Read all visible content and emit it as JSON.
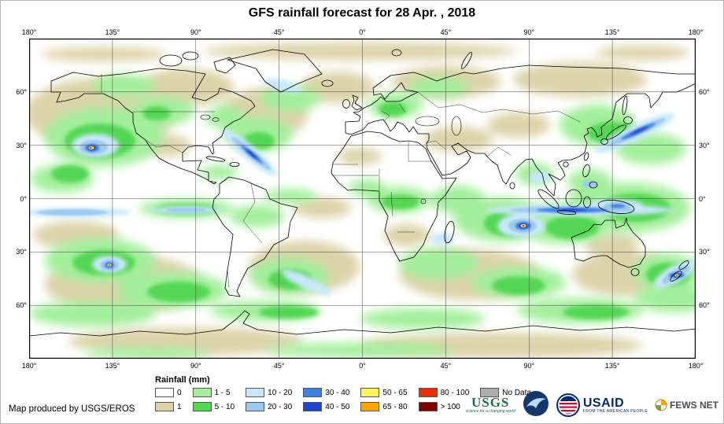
{
  "title": "GFS rainfall forecast for 28 Apr. , 2018",
  "map": {
    "lon_ticks": [
      "180°",
      "135°",
      "90°",
      "45°",
      "0°",
      "45°",
      "90°",
      "135°",
      "180°"
    ],
    "lat_ticks": [
      "60°",
      "30°",
      "0°",
      "30°",
      "60°"
    ]
  },
  "legend": {
    "title": "Rainfall (mm)",
    "items": [
      {
        "label": "0",
        "color": "#FFFFFF"
      },
      {
        "label": "1",
        "color": "#DCD3A9"
      },
      {
        "label": "1 - 5",
        "color": "#A3EF9B"
      },
      {
        "label": "5 - 10",
        "color": "#52D653"
      },
      {
        "label": "10 - 20",
        "color": "#C8E8FA"
      },
      {
        "label": "20 - 30",
        "color": "#9DC9EF"
      },
      {
        "label": "30 - 40",
        "color": "#4080E0"
      },
      {
        "label": "40 - 50",
        "color": "#2244C8"
      },
      {
        "label": "50 - 65",
        "color": "#FDF25E"
      },
      {
        "label": "65 - 80",
        "color": "#FFA400"
      },
      {
        "label": "80 - 100",
        "color": "#E63000"
      },
      {
        "label": "> 100",
        "color": "#7D0002"
      },
      {
        "label": "No Data",
        "color": "#ACACAC"
      }
    ]
  },
  "credit": "Map produced by USGS/EROS",
  "logos": {
    "usgs": {
      "name": "USGS",
      "tagline": "science for a changing world"
    },
    "noaa": {
      "name": "NOAA"
    },
    "usaid": {
      "name": "USAID",
      "tagline": "FROM THE AMERICAN PEOPLE"
    },
    "fewsnet": {
      "name": "FEWS NET"
    }
  }
}
